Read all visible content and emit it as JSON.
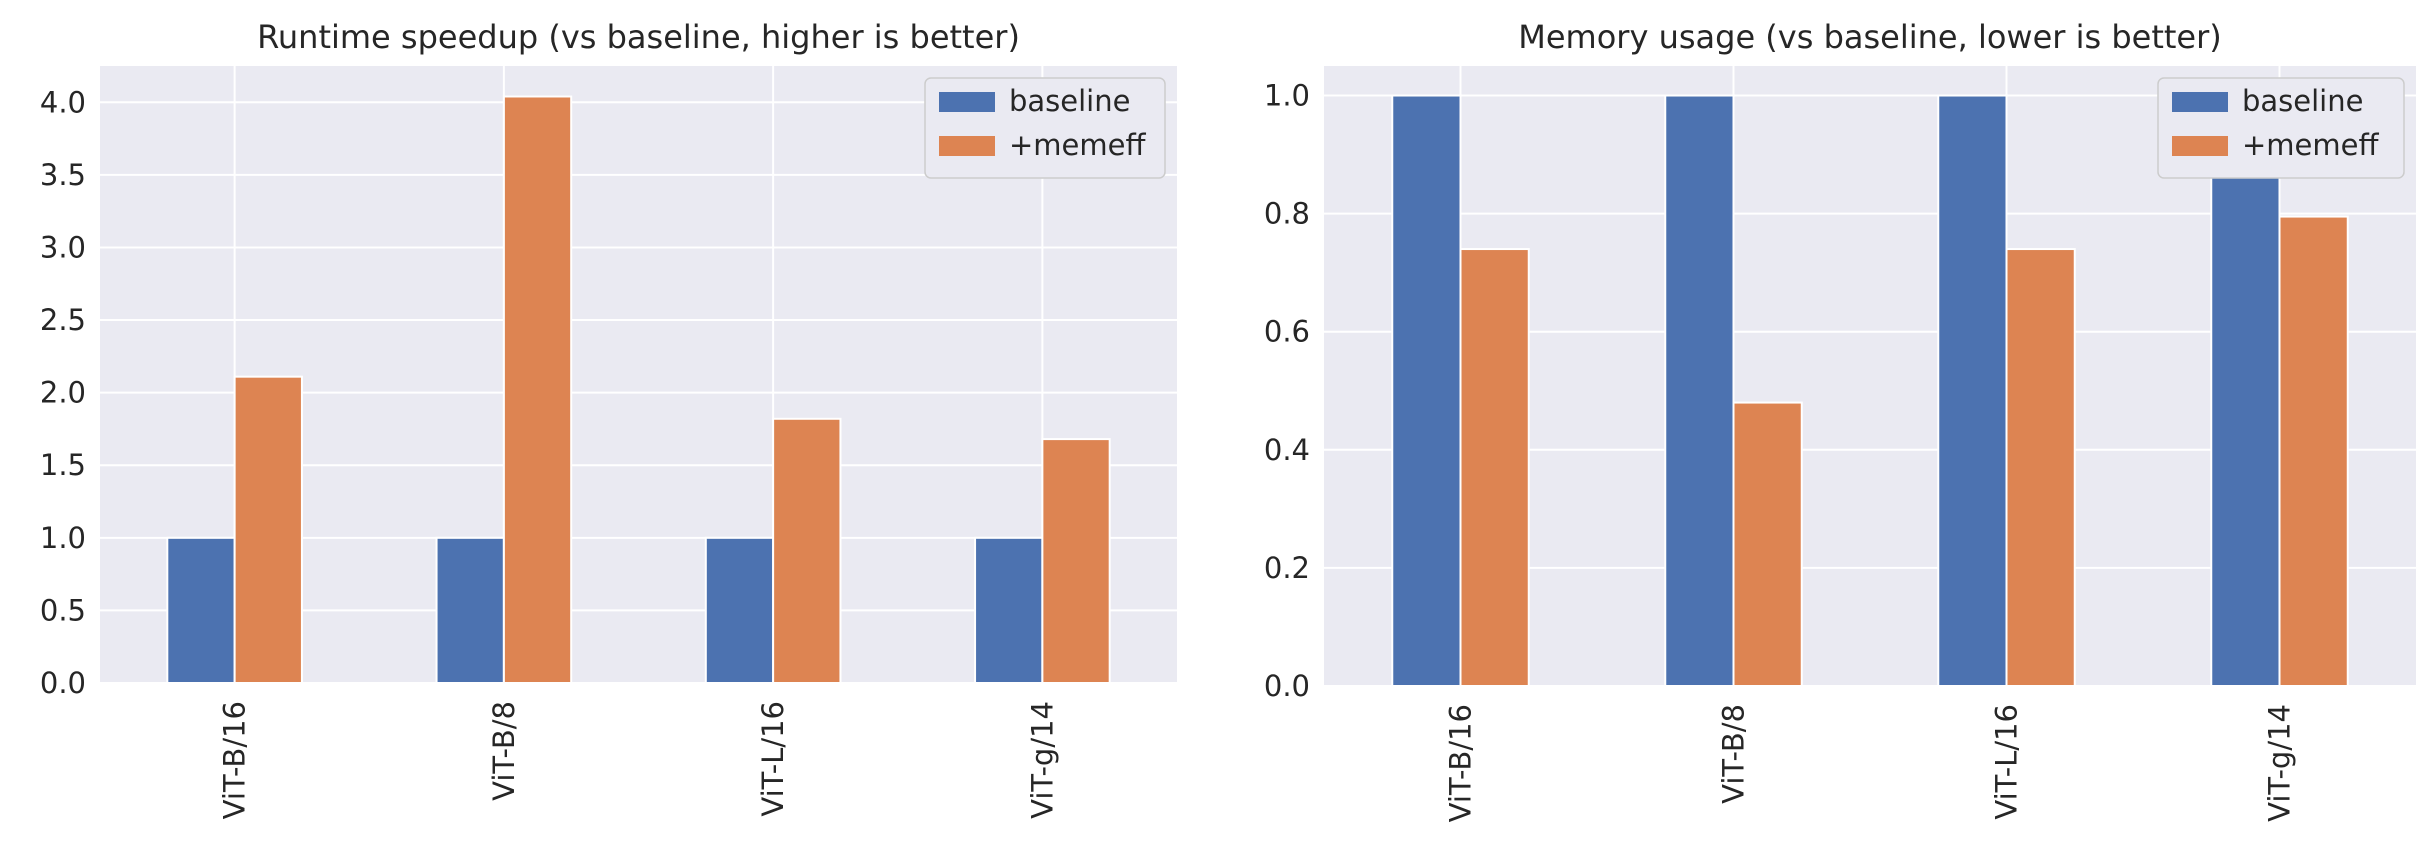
{
  "colors": {
    "baseline": "#4c72b0",
    "memeff": "#dd8452",
    "plot_background": "#eaeaf2",
    "grid": "#ffffff"
  },
  "chart_data": [
    {
      "type": "bar",
      "title": "Runtime speedup (vs baseline, higher is better)",
      "xlabel": "",
      "ylabel": "",
      "categories": [
        "ViT-B/16",
        "ViT-B/8",
        "ViT-L/16",
        "ViT-g/14"
      ],
      "series": [
        {
          "name": "baseline",
          "values": [
            1.0,
            1.0,
            1.0,
            1.0
          ]
        },
        {
          "name": "+memeff",
          "values": [
            2.11,
            4.04,
            1.82,
            1.68
          ]
        }
      ],
      "ylim": [
        0,
        4.25
      ],
      "yticks": [
        "0.0",
        "0.5",
        "1.0",
        "1.5",
        "2.0",
        "2.5",
        "3.0",
        "3.5",
        "4.0"
      ],
      "grid": true,
      "legend_position": "top-right"
    },
    {
      "type": "bar",
      "title": "Memory usage (vs baseline, lower is better)",
      "xlabel": "",
      "ylabel": "",
      "categories": [
        "ViT-B/16",
        "ViT-B/8",
        "ViT-L/16",
        "ViT-g/14"
      ],
      "series": [
        {
          "name": "baseline",
          "values": [
            1.0,
            1.0,
            1.0,
            1.0
          ]
        },
        {
          "name": "+memeff",
          "values": [
            0.74,
            0.48,
            0.74,
            0.795
          ]
        }
      ],
      "ylim": [
        0,
        1.05
      ],
      "yticks": [
        "0.0",
        "0.2",
        "0.4",
        "0.6",
        "0.8",
        "1.0"
      ],
      "grid": true,
      "legend_position": "top-right"
    }
  ]
}
